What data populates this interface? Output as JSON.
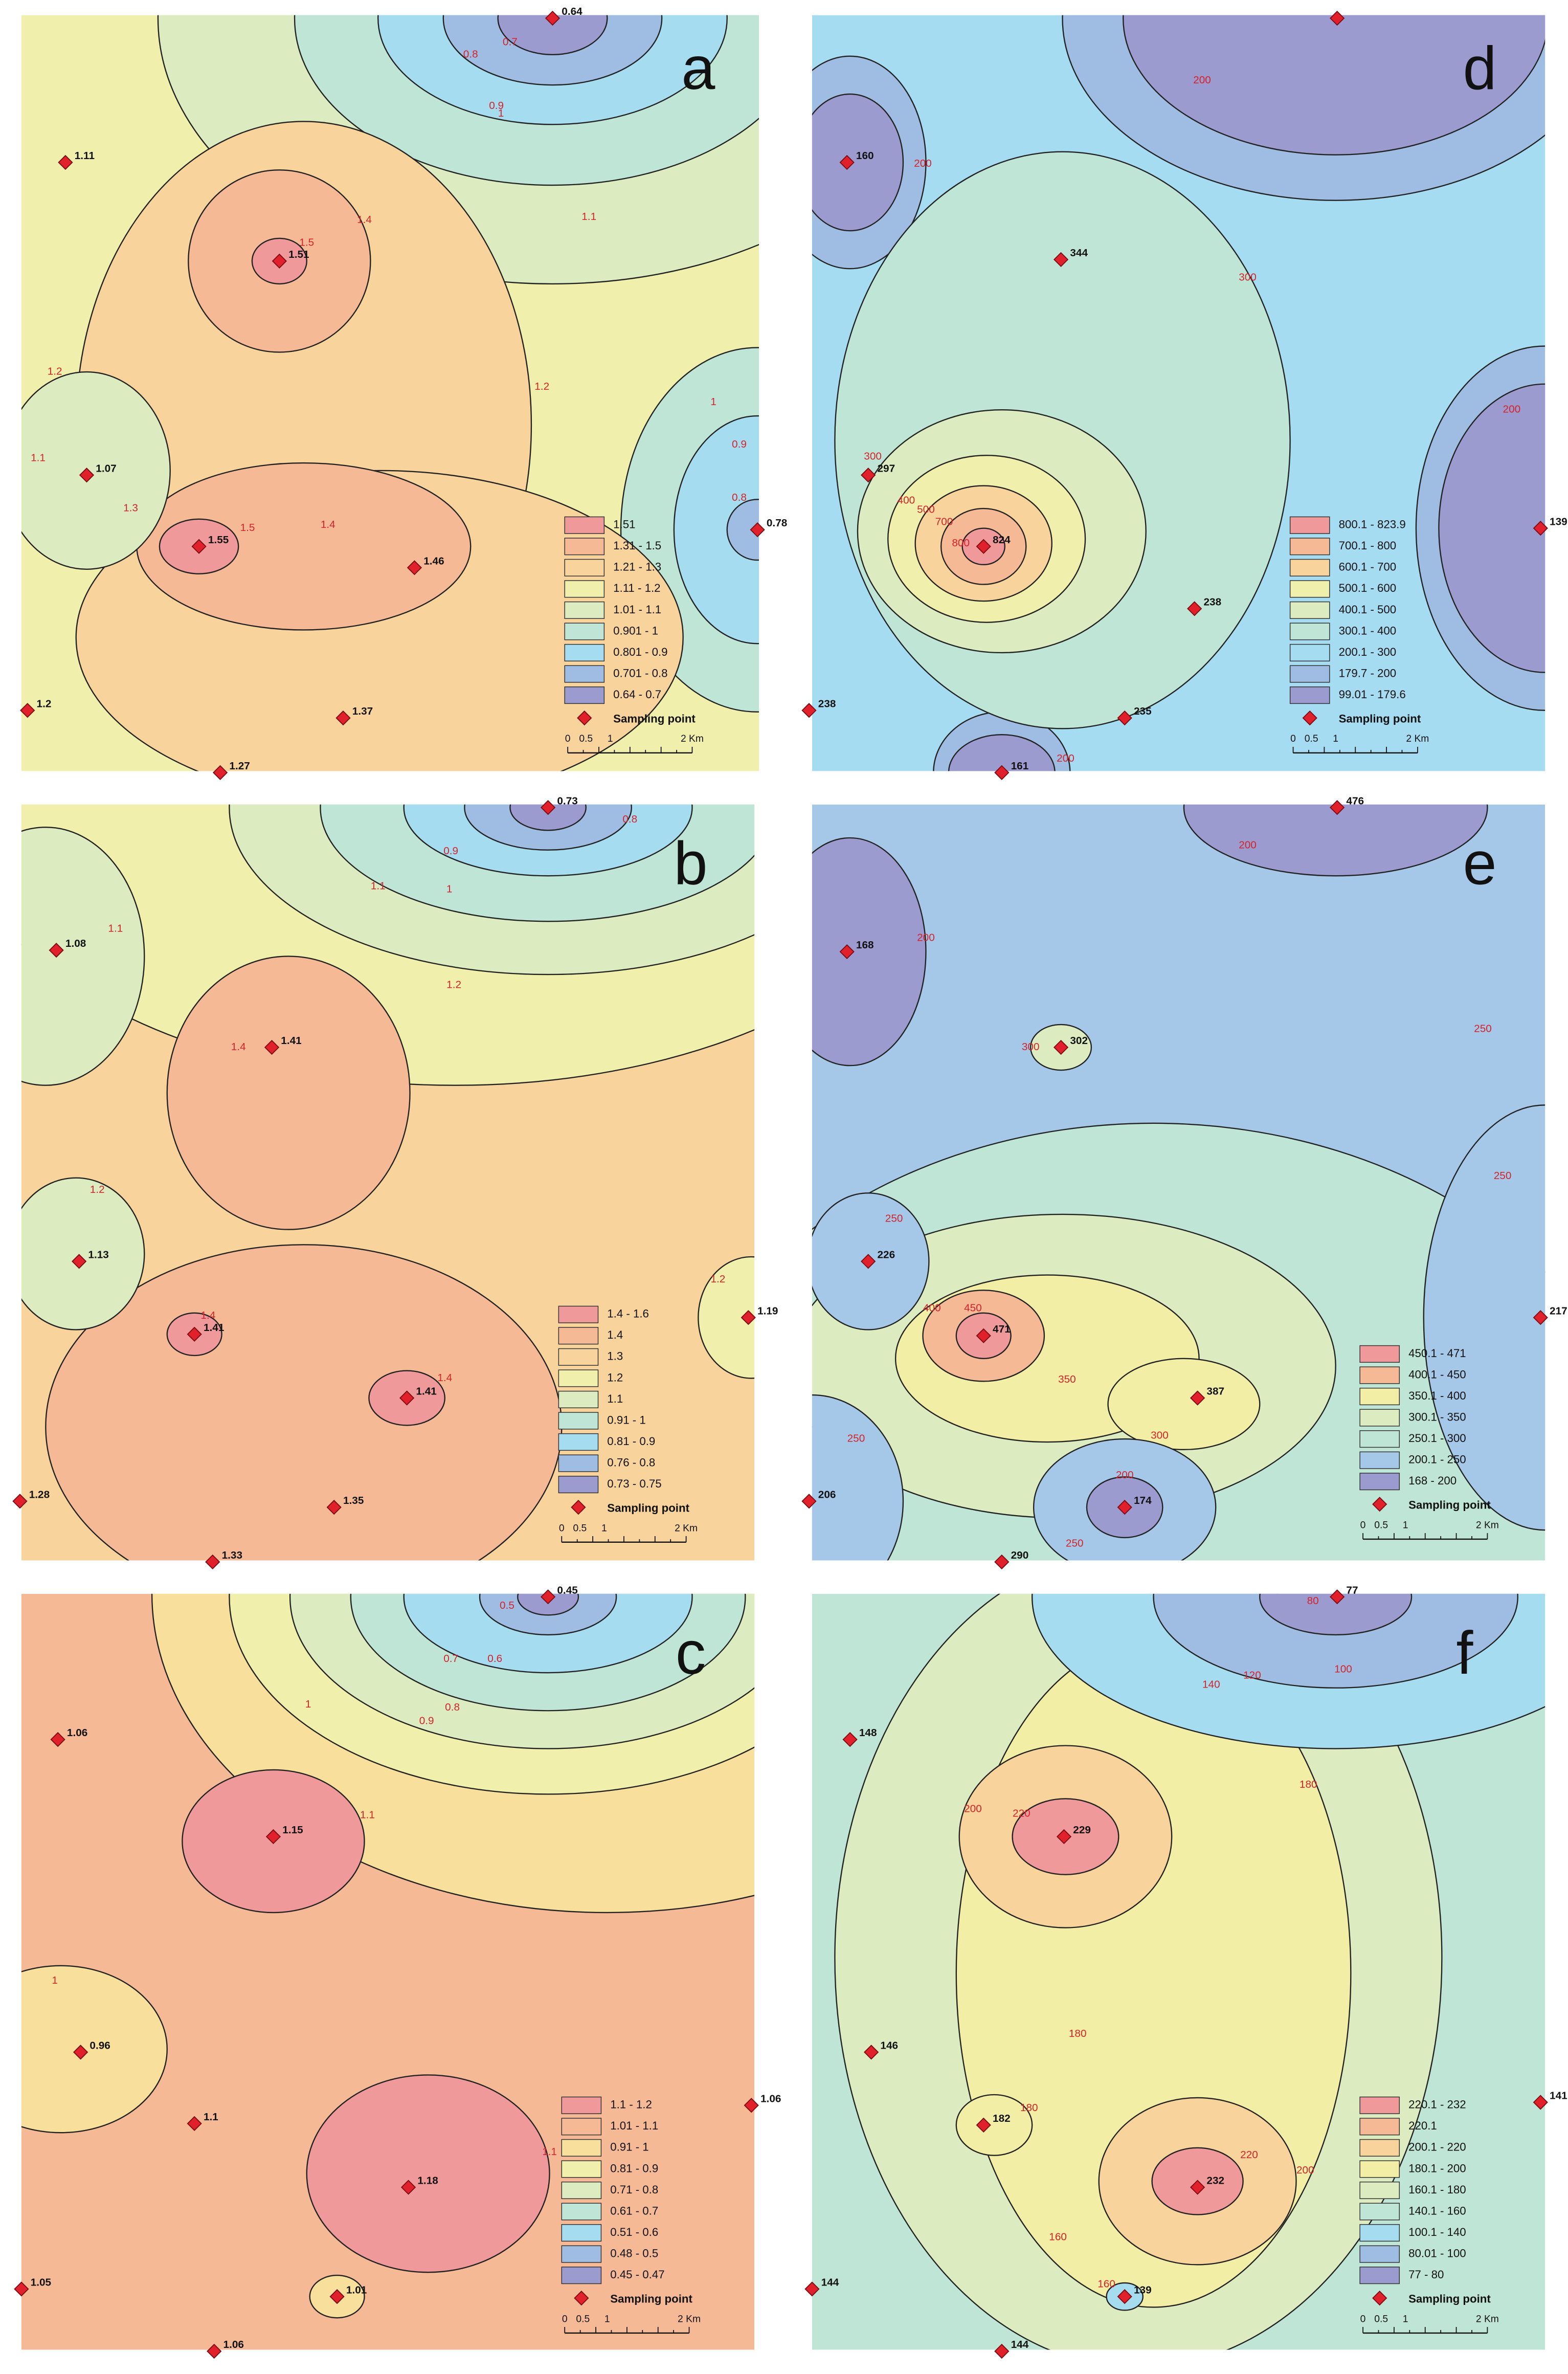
{
  "panels": [
    {
      "letter": "a",
      "marker_color": "#e0202a",
      "points": [
        "1.11",
        "1.51",
        "1.07",
        "1.55",
        "1.46",
        "1.2",
        "1.37",
        "1.27",
        "0.64",
        "0.78"
      ],
      "contour_labels": [
        "1.5",
        "1.4",
        "1.3",
        "1.5",
        "1.4",
        "1.2",
        "1.1",
        "1",
        "0.8",
        "0.7",
        "0.9",
        "1",
        "0.9",
        "0.8",
        "1.2",
        "1.1"
      ],
      "legend": {
        "items": [
          {
            "label": "1.51",
            "color": "#f0999b"
          },
          {
            "label": "1.31 - 1.5",
            "color": "#f6b996"
          },
          {
            "label": "1.21 - 1.3",
            "color": "#f8d49c"
          },
          {
            "label": "1.11 - 1.2",
            "color": "#f0efac"
          },
          {
            "label": "1.01 - 1.1",
            "color": "#dcecc0"
          },
          {
            "label": "0.901 - 1",
            "color": "#bfe5d6"
          },
          {
            "label": "0.801 - 0.9",
            "color": "#a6dcf0"
          },
          {
            "label": "0.701 - 0.8",
            "color": "#9fbde2"
          },
          {
            "label": "0.64 - 0.7",
            "color": "#9b9bd0"
          }
        ],
        "marker_label": "Sampling point",
        "scale_labels": [
          "0",
          "0.5",
          "1",
          "2 Km"
        ]
      }
    },
    {
      "letter": "b",
      "marker_color": "#e0202a",
      "points": [
        "1.08",
        "1.41",
        "1.13",
        "1.41",
        "1.41",
        "1.28",
        "1.35",
        "1.33",
        "0.73",
        "1.19"
      ],
      "contour_labels": [
        "0.9",
        "0.8",
        "1.1",
        "1",
        "1.1",
        "1.2",
        "1.4",
        "1.2",
        "1.4",
        "1.4",
        "1.2"
      ],
      "legend": {
        "items": [
          {
            "label": "1.4 - 1.6",
            "color": "#f0999b"
          },
          {
            "label": "1.4",
            "color": "#f6b996"
          },
          {
            "label": "1.3",
            "color": "#f8d49c"
          },
          {
            "label": "1.2",
            "color": "#f0efac"
          },
          {
            "label": "1.1",
            "color": "#dcecc0"
          },
          {
            "label": "0.91 - 1",
            "color": "#bfe5d6"
          },
          {
            "label": "0.81 - 0.9",
            "color": "#a6dcf0"
          },
          {
            "label": "0.76 - 0.8",
            "color": "#9fbde2"
          },
          {
            "label": "0.73 - 0.75",
            "color": "#9b9bd0"
          }
        ],
        "marker_label": "Sampling point",
        "scale_labels": [
          "0",
          "0.5",
          "1",
          "2 Km"
        ]
      }
    },
    {
      "letter": "c",
      "marker_color": "#e0202a",
      "points": [
        "0.45",
        "1.06",
        "1.15",
        "0.96",
        "1.1",
        "1.18",
        "1.06",
        "1.05",
        "1.01",
        "1.06"
      ],
      "contour_labels": [
        "0.5",
        "0.6",
        "0.7",
        "0.8",
        "0.9",
        "1",
        "1.1",
        "1",
        "1.1"
      ],
      "legend": {
        "items": [
          {
            "label": "1.1 - 1.2",
            "color": "#f0999b"
          },
          {
            "label": "1.01 - 1.1",
            "color": "#f6b996"
          },
          {
            "label": "0.91 - 1",
            "color": "#f8e09c"
          },
          {
            "label": "0.81 - 0.9",
            "color": "#f0efac"
          },
          {
            "label": "0.71 - 0.8",
            "color": "#dcecc0"
          },
          {
            "label": "0.61 - 0.7",
            "color": "#bfe5d6"
          },
          {
            "label": "0.51 - 0.6",
            "color": "#a6dcf0"
          },
          {
            "label": "0.48 - 0.5",
            "color": "#9fbde2"
          },
          {
            "label": "0.45 - 0.47",
            "color": "#9b9bd0"
          }
        ],
        "marker_label": "Sampling point",
        "scale_labels": [
          "0",
          "0.5",
          "1",
          "2 Km"
        ]
      }
    },
    {
      "letter": "d",
      "marker_color": "#e0202a",
      "points": [
        null,
        "160",
        "344",
        "297",
        "824",
        "238",
        "238",
        "235",
        "161",
        "139"
      ],
      "contour_labels": [
        "300",
        "400",
        "500",
        "700",
        "800",
        "300",
        "200",
        "200",
        "200",
        "200"
      ],
      "legend": {
        "items": [
          {
            "label": "800.1 - 823.9",
            "color": "#f0999b"
          },
          {
            "label": "700.1 - 800",
            "color": "#f6b996"
          },
          {
            "label": "600.1 - 700",
            "color": "#f8d49c"
          },
          {
            "label": "500.1 - 600",
            "color": "#f0efac"
          },
          {
            "label": "400.1 - 500",
            "color": "#dcecc0"
          },
          {
            "label": "300.1 - 400",
            "color": "#bfe5d6"
          },
          {
            "label": "200.1 - 300",
            "color": "#a6dcf2"
          },
          {
            "label": "179.7 - 200",
            "color": "#9fbde2"
          },
          {
            "label": "99.01 - 179.6",
            "color": "#9b9bd0"
          }
        ],
        "marker_label": "Sampling point",
        "scale_labels": [
          "0",
          "0.5",
          "1",
          "2 Km"
        ]
      }
    },
    {
      "letter": "e",
      "marker_color": "#e0202a",
      "points": [
        "476",
        "168",
        "302",
        "226",
        "471",
        "387",
        "206",
        "174",
        "290",
        "217"
      ],
      "contour_labels": [
        "200",
        "200",
        "250",
        "300",
        "250",
        "250",
        "400",
        "450",
        "350",
        "300",
        "200",
        "250",
        "250"
      ],
      "legend": {
        "items": [
          {
            "label": "450.1 - 471",
            "color": "#f0999b"
          },
          {
            "label": "400.1 - 450",
            "color": "#f6b996"
          },
          {
            "label": "350.1 - 400",
            "color": "#f3eea6"
          },
          {
            "label": "300.1 - 350",
            "color": "#dcecc0"
          },
          {
            "label": "250.1 - 300",
            "color": "#bfe5d6"
          },
          {
            "label": "200.1 - 250",
            "color": "#a6c8e8"
          },
          {
            "label": "168 - 200",
            "color": "#9b9bd0"
          }
        ],
        "marker_label": "Sampling point",
        "scale_labels": [
          "0",
          "0.5",
          "1",
          "2 Km"
        ]
      }
    },
    {
      "letter": "f",
      "marker_color": "#e0202a",
      "points": [
        "77",
        "148",
        "229",
        "146",
        "182",
        "232",
        "141",
        "144",
        "139",
        "144"
      ],
      "contour_labels": [
        "80",
        "100",
        "120",
        "140",
        "180",
        "200",
        "220",
        "180",
        "180",
        "220",
        "200",
        "160",
        "160"
      ],
      "legend": {
        "items": [
          {
            "label": "220.1 - 232",
            "color": "#f0999b"
          },
          {
            "label": "220.1",
            "color": "#f6b996"
          },
          {
            "label": "200.1 - 220",
            "color": "#f8d49c"
          },
          {
            "label": "180.1 - 200",
            "color": "#f3eea6"
          },
          {
            "label": "160.1 - 180",
            "color": "#dcecc0"
          },
          {
            "label": "140.1 - 160",
            "color": "#bfe5d6"
          },
          {
            "label": "100.1 - 140",
            "color": "#a6dcf0"
          },
          {
            "label": "80.01 - 100",
            "color": "#9fbde2"
          },
          {
            "label": "77 - 80",
            "color": "#9b9bd0"
          }
        ],
        "marker_label": "Sampling point",
        "scale_labels": [
          "0",
          "0.5",
          "1",
          "2 Km"
        ]
      }
    }
  ]
}
